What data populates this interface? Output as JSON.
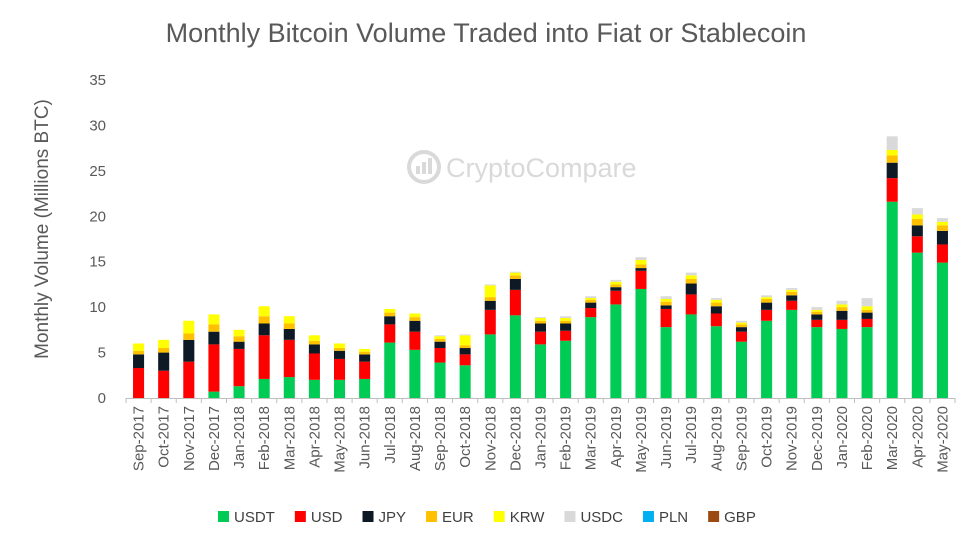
{
  "chart_data": {
    "type": "bar",
    "stacked": true,
    "title": "Monthly Bitcoin Volume Traded into Fiat or Stablecoin",
    "ylabel": "Monthly Volume (Millions BTC)",
    "ylim": [
      0,
      35
    ],
    "yticks": [
      0,
      5,
      10,
      15,
      20,
      25,
      30,
      35
    ],
    "grid": false,
    "legend_position": "bottom",
    "watermark": "CryptoCompare",
    "categories": [
      "Sep-2017",
      "Oct-2017",
      "Nov-2017",
      "Dec-2017",
      "Jan-2018",
      "Feb-2018",
      "Mar-2018",
      "Apr-2018",
      "May-2018",
      "Jun-2018",
      "Jul-2018",
      "Aug-2018",
      "Sep-2018",
      "Oct-2018",
      "Nov-2018",
      "Dec-2018",
      "Jan-2019",
      "Feb-2019",
      "Mar-2019",
      "Apr-2019",
      "May-2019",
      "Jun-2019",
      "Jul-2019",
      "Aug-2019",
      "Sep-2019",
      "Oct-2019",
      "Nov-2019",
      "Dec-2019",
      "Jan-2020",
      "Feb-2020",
      "Mar-2020",
      "Apr-2020",
      "May-2020"
    ],
    "series": [
      {
        "name": "USDT",
        "color": "#00cc55",
        "values": [
          0,
          0,
          0,
          0.7,
          1.3,
          2.1,
          2.3,
          2.0,
          2.0,
          2.1,
          6.1,
          5.3,
          3.9,
          3.6,
          7.0,
          9.1,
          5.9,
          6.3,
          8.9,
          10.3,
          12.0,
          7.8,
          9.2,
          7.9,
          6.2,
          8.5,
          9.7,
          7.8,
          7.6,
          7.8,
          21.6,
          16.0,
          14.9
        ]
      },
      {
        "name": "USD",
        "color": "#ff0000",
        "values": [
          3.3,
          3.0,
          4.0,
          5.2,
          4.1,
          4.8,
          4.1,
          2.9,
          2.3,
          1.9,
          2.0,
          2.0,
          1.6,
          1.2,
          2.7,
          2.8,
          1.4,
          1.1,
          1.0,
          1.5,
          2.0,
          2.0,
          2.2,
          1.4,
          1.1,
          1.2,
          1.0,
          0.8,
          1.0,
          0.9,
          2.6,
          1.8,
          2.0
        ]
      },
      {
        "name": "JPY",
        "color": "#0d1a26",
        "values": [
          1.5,
          2.0,
          2.4,
          1.4,
          0.8,
          1.3,
          1.2,
          1.0,
          0.9,
          0.8,
          0.9,
          1.2,
          0.7,
          0.7,
          1.0,
          1.2,
          0.9,
          0.8,
          0.6,
          0.4,
          0.3,
          0.4,
          1.2,
          0.8,
          0.5,
          0.8,
          0.6,
          0.6,
          1.0,
          0.7,
          1.7,
          1.2,
          1.5
        ]
      },
      {
        "name": "EUR",
        "color": "#ffc000",
        "values": [
          0.4,
          0.5,
          0.7,
          0.8,
          0.6,
          0.8,
          0.6,
          0.4,
          0.3,
          0.3,
          0.4,
          0.4,
          0.3,
          0.3,
          0.4,
          0.4,
          0.3,
          0.3,
          0.3,
          0.3,
          0.4,
          0.4,
          0.5,
          0.4,
          0.3,
          0.4,
          0.4,
          0.3,
          0.4,
          0.3,
          0.8,
          0.7,
          0.6
        ]
      },
      {
        "name": "KRW",
        "color": "#ffff00",
        "values": [
          0.8,
          0.9,
          1.4,
          1.1,
          0.7,
          1.1,
          0.8,
          0.6,
          0.5,
          0.3,
          0.4,
          0.4,
          0.3,
          1.1,
          1.3,
          0.3,
          0.3,
          0.3,
          0.2,
          0.3,
          0.5,
          0.3,
          0.4,
          0.3,
          0.2,
          0.2,
          0.2,
          0.2,
          0.3,
          0.4,
          0.6,
          0.5,
          0.4
        ]
      },
      {
        "name": "USDC",
        "color": "#d9d9d9",
        "values": [
          0,
          0,
          0,
          0,
          0,
          0,
          0,
          0,
          0,
          0,
          0,
          0,
          0.1,
          0.1,
          0.1,
          0.1,
          0.1,
          0.2,
          0.2,
          0.2,
          0.3,
          0.3,
          0.3,
          0.2,
          0.2,
          0.2,
          0.2,
          0.3,
          0.4,
          0.9,
          1.5,
          0.7,
          0.4
        ]
      },
      {
        "name": "PLN",
        "color": "#00b0f0",
        "values": [
          0,
          0,
          0,
          0,
          0,
          0,
          0,
          0,
          0,
          0,
          0,
          0,
          0,
          0,
          0,
          0,
          0,
          0,
          0,
          0,
          0,
          0,
          0,
          0,
          0,
          0,
          0,
          0,
          0,
          0,
          0,
          0,
          0
        ]
      },
      {
        "name": "GBP",
        "color": "#9c4a12",
        "values": [
          0,
          0,
          0,
          0,
          0,
          0,
          0,
          0,
          0,
          0,
          0,
          0,
          0,
          0,
          0,
          0,
          0,
          0,
          0,
          0,
          0,
          0,
          0,
          0,
          0,
          0,
          0,
          0,
          0,
          0,
          0,
          0,
          0
        ]
      }
    ]
  }
}
